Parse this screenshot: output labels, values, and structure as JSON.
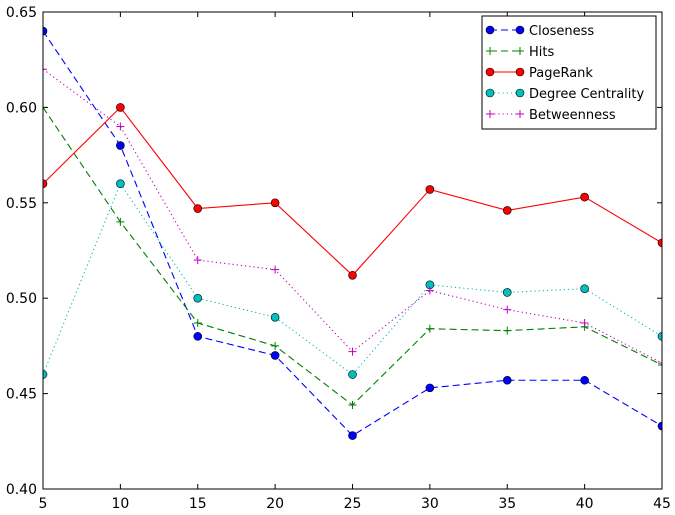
{
  "chart_data": {
    "type": "line",
    "title": "",
    "xlabel": "",
    "ylabel": "",
    "x": [
      5,
      10,
      15,
      20,
      25,
      30,
      35,
      40,
      45
    ],
    "xlim": [
      5,
      45
    ],
    "ylim": [
      0.4,
      0.65
    ],
    "xticks": [
      5,
      10,
      15,
      20,
      25,
      30,
      35,
      40,
      45
    ],
    "yticks": [
      0.4,
      0.45,
      0.5,
      0.55,
      0.6,
      0.65
    ],
    "ytick_labels": [
      "0.40",
      "0.45",
      "0.50",
      "0.55",
      "0.60",
      "0.65"
    ],
    "xtick_labels": [
      "5",
      "10",
      "15",
      "20",
      "25",
      "30",
      "35",
      "40",
      "45"
    ],
    "grid": false,
    "legend_position": "top-right",
    "series": [
      {
        "name": "Closeness",
        "values": [
          0.64,
          0.58,
          0.48,
          0.47,
          0.428,
          0.453,
          0.457,
          0.457,
          0.433
        ],
        "color": "#0000ff",
        "linestyle": "dashed",
        "marker": "circle"
      },
      {
        "name": "Hits",
        "values": [
          0.6,
          0.54,
          0.487,
          0.475,
          0.444,
          0.484,
          0.483,
          0.485,
          0.465
        ],
        "color": "#008000",
        "linestyle": "dashed",
        "marker": "plus"
      },
      {
        "name": "PageRank",
        "values": [
          0.56,
          0.6,
          0.547,
          0.55,
          0.512,
          0.557,
          0.546,
          0.553,
          0.529
        ],
        "color": "#ff0000",
        "linestyle": "solid",
        "marker": "circle"
      },
      {
        "name": "Degree Centrality",
        "values": [
          0.46,
          0.56,
          0.5,
          0.49,
          0.46,
          0.507,
          0.503,
          0.505,
          0.48
        ],
        "color": "#00bfbf",
        "linestyle": "dotted",
        "marker": "circle"
      },
      {
        "name": "Betweenness",
        "values": [
          0.62,
          0.59,
          0.52,
          0.515,
          0.472,
          0.504,
          0.494,
          0.487,
          0.466
        ],
        "color": "#bf00bf",
        "linestyle": "dotted",
        "marker": "plus"
      }
    ]
  }
}
